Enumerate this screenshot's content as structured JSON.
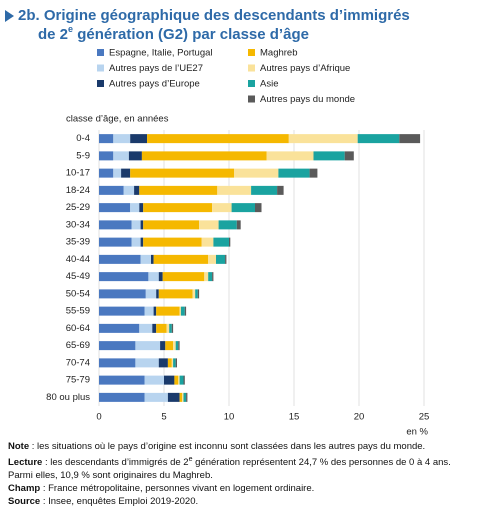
{
  "chart_data": {
    "type": "stacked-barh",
    "title": [
      "2b. Origine géographique des descendants d’immigrés",
      "de 2",
      "e",
      " génération (G2) par classe d’âge"
    ],
    "y_axis_title": "classe d’âge, en années",
    "x_unit": "en %",
    "categories": [
      "0-4",
      "5-9",
      "10-17",
      "18-24",
      "25-29",
      "30-34",
      "35-39",
      "40-44",
      "45-49",
      "50-54",
      "55-59",
      "60-64",
      "65-69",
      "70-74",
      "75-79",
      "80 ou plus"
    ],
    "series": [
      {
        "name": "Espagne, Italie, Portugal",
        "color": "#4a78c0",
        "values": [
          1.1,
          1.1,
          1.1,
          1.9,
          2.4,
          2.5,
          2.5,
          3.2,
          3.8,
          3.6,
          3.5,
          3.1,
          2.8,
          2.8,
          3.5,
          3.5
        ]
      },
      {
        "name": "Autres pays de l’UE27",
        "color": "#b8d4ef",
        "values": [
          1.3,
          1.2,
          0.6,
          0.8,
          0.7,
          0.7,
          0.7,
          0.8,
          0.8,
          0.8,
          0.7,
          1.0,
          1.9,
          1.8,
          1.5,
          1.8
        ]
      },
      {
        "name": "Autres pays d’Europe",
        "color": "#1a3a6b",
        "values": [
          1.3,
          1.0,
          0.7,
          0.4,
          0.3,
          0.2,
          0.2,
          0.2,
          0.3,
          0.2,
          0.2,
          0.3,
          0.4,
          0.7,
          0.8,
          0.9
        ]
      },
      {
        "name": "Maghreb",
        "color": "#f5b800",
        "values": [
          10.9,
          9.6,
          8.0,
          6.0,
          5.3,
          4.3,
          4.5,
          4.2,
          3.2,
          2.6,
          1.8,
          0.8,
          0.6,
          0.3,
          0.3,
          0.2
        ]
      },
      {
        "name": "Autres pays d’Afrique",
        "color": "#fae29a",
        "values": [
          5.3,
          3.6,
          3.4,
          2.6,
          1.5,
          1.5,
          0.9,
          0.6,
          0.3,
          0.2,
          0.1,
          0.2,
          0.2,
          0.1,
          0.1,
          0.1
        ]
      },
      {
        "name": "Asie",
        "color": "#1aa3a0",
        "values": [
          3.2,
          2.4,
          2.4,
          2.0,
          1.8,
          1.4,
          1.2,
          0.7,
          0.3,
          0.2,
          0.3,
          0.2,
          0.2,
          0.2,
          0.3,
          0.2
        ]
      },
      {
        "name": "Autres pays du monde",
        "color": "#5a5a5a",
        "values": [
          1.6,
          0.7,
          0.6,
          0.5,
          0.5,
          0.3,
          0.1,
          0.1,
          0.1,
          0.1,
          0.1,
          0.1,
          0.1,
          0.1,
          0.1,
          0.1
        ]
      }
    ],
    "xlim": [
      0,
      25
    ],
    "xticks": [
      0,
      5,
      10,
      15,
      20,
      25
    ],
    "grid": true
  },
  "notes": [
    {
      "label": "Note",
      "text": [
        " : les situations où le pays d’origine est inconnu sont classées dans les autres pays du monde."
      ]
    },
    {
      "label": "Lecture",
      "text": [
        " : les descendants d’immigrés de 2",
        "e",
        " génération représentent 24,7 % des personnes de 0 à 4 ans. Parmi elles, 10,9 % sont originaires du Maghreb."
      ]
    },
    {
      "label": "Champ",
      "text": [
        " : France métropolitaine, personnes vivant en logement ordinaire."
      ]
    },
    {
      "label": "Source",
      "text": [
        " : Insee, enquêtes Emploi 2019-2020."
      ]
    }
  ]
}
